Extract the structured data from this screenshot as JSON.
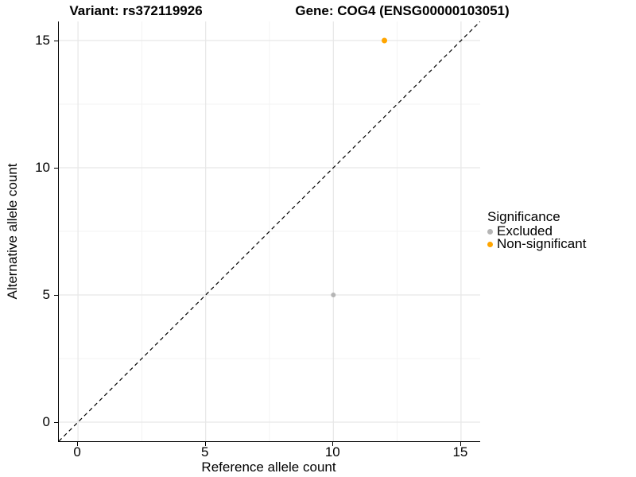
{
  "chart_data": {
    "type": "scatter",
    "titles": [
      "Variant: rs372119926",
      "Gene: COG4 (ENSG00000103051)"
    ],
    "xlabel": "Reference allele count",
    "ylabel": "Alternative allele count",
    "xlim": [
      -0.75,
      15.75
    ],
    "ylim": [
      -0.75,
      15.75
    ],
    "x_ticks": [
      0,
      5,
      10,
      15
    ],
    "y_ticks": [
      0,
      5,
      10,
      15
    ],
    "minor_gridlines": [
      2.5,
      7.5,
      12.5
    ],
    "grid": "on",
    "background": "#ffffff",
    "grid_major_color": "#e7e7e7",
    "grid_minor_color": "#f3f3f3",
    "axis_line_color": "#000000",
    "identity_line": {
      "equation": "y = x",
      "style": "dashed",
      "color": "#000000"
    },
    "legend": {
      "title": "Significance",
      "position": "right"
    },
    "series": [
      {
        "name": "Excluded",
        "color": "#b5b5b5",
        "radius": 3,
        "points": [
          {
            "x": 10,
            "y": 5
          }
        ]
      },
      {
        "name": "Non-significant",
        "color": "#ffa500",
        "radius": 3.5,
        "points": [
          {
            "x": 12,
            "y": 15
          }
        ]
      }
    ]
  }
}
